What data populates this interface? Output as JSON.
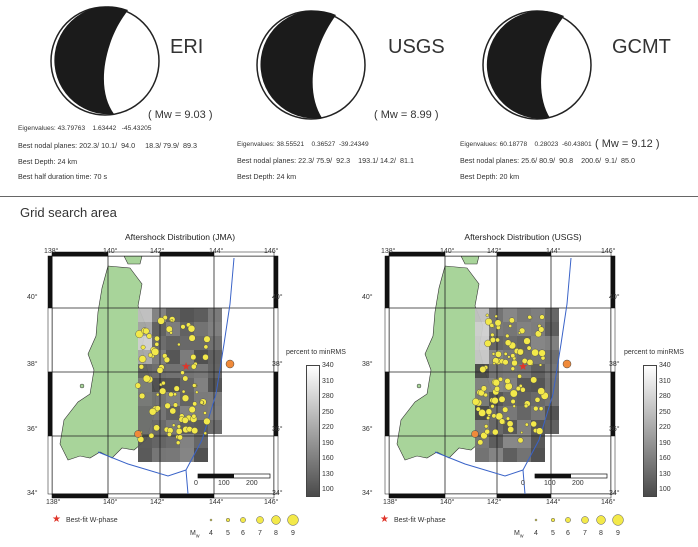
{
  "mechanisms": [
    {
      "agency": "ERI",
      "mw": "( Mw = 9.03 )",
      "eigen_label": "Eigenvalues:",
      "eigen": "43.79763    1.63442   -45.43205",
      "nodal_label": "Best nodal planes:",
      "nodal": "202.3/ 10.1/  94.0     18.3/ 79.9/  89.3",
      "depth": "Best Depth: 24 km",
      "extra": "Best half duration time: 70 s"
    },
    {
      "agency": "USGS",
      "mw": "( Mw = 8.99 )",
      "eigen_label": "Eigenvalues:",
      "eigen": "38.55521    0.36527  -39.24349",
      "nodal_label": "Best nodal planes:",
      "nodal": "22.3/ 75.9/  92.3    193.1/ 14.2/  81.1",
      "depth": "Best Depth: 24 km",
      "extra": ""
    },
    {
      "agency": "GCMT",
      "mw": "( Mw = 9.12 )",
      "eigen_label": "Eigenvalues:",
      "eigen": "60.18778    0.28023  -60.43801",
      "nodal_label": "Best nodal planes:",
      "nodal": "25.6/ 80.9/  90.8    200.6/  9.1/  85.0",
      "depth": "Best Depth: 20 km",
      "extra": ""
    }
  ],
  "section_title": "Grid search area",
  "maps": [
    {
      "title": "Aftershock Distribution (JMA)",
      "lon_ticks": [
        "138°",
        "140°",
        "142°",
        "144°",
        "146°"
      ],
      "lat_ticks": [
        "40°",
        "38°",
        "36°",
        "34°"
      ],
      "colorbar_title": "percent to minRMS",
      "colorbar_ticks": [
        "340",
        "310",
        "280",
        "250",
        "220",
        "190",
        "160",
        "130",
        "100"
      ],
      "scale_labels": [
        "0",
        "100",
        "200"
      ]
    },
    {
      "title": "Aftershock Distribution (USGS)",
      "lon_ticks": [
        "138°",
        "140°",
        "142°",
        "144°",
        "146°"
      ],
      "lat_ticks": [
        "40°",
        "38°",
        "36°",
        "34°"
      ],
      "colorbar_title": "percent to minRMS",
      "colorbar_ticks": [
        "340",
        "310",
        "280",
        "250",
        "220",
        "190",
        "160",
        "130",
        "100"
      ],
      "scale_labels": [
        "0",
        "100",
        "200"
      ]
    }
  ],
  "legend": {
    "bestfit": "Best-fit W-phase",
    "mw_label": "M",
    "mw_sub": "w",
    "magnitudes": [
      "4",
      "5",
      "6",
      "7",
      "8",
      "9"
    ]
  },
  "colors": {
    "land": "#a8d49a",
    "grid_dark": "#555555",
    "aftershock": "#f3e94a",
    "large_event": "#f08a3a",
    "bestfit": "#e0352a",
    "trench": "#3a63c8"
  }
}
